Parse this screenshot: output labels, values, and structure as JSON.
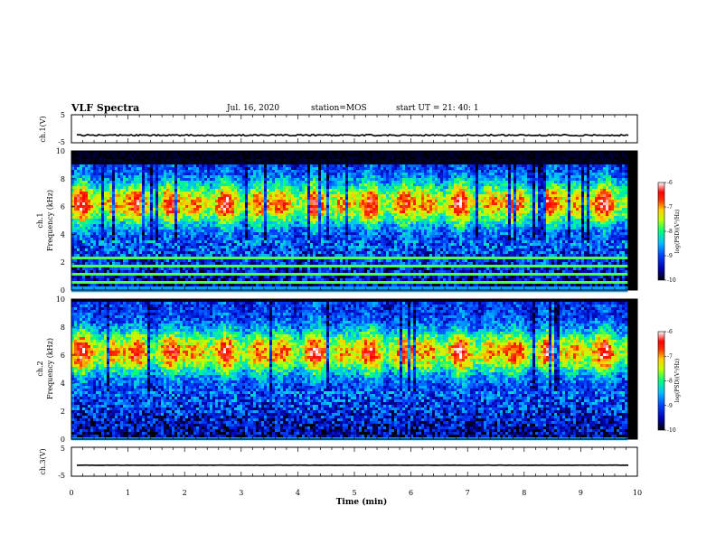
{
  "header": {
    "title": "VLF Spectra",
    "date": "Jul. 16, 2020",
    "station": "station=MOS",
    "start": "start UT =  21: 40: 1"
  },
  "chart_data": [
    {
      "type": "line",
      "name": "ch1-waveform",
      "ylabel": "ch.1(V)",
      "ylim": [
        -5,
        5
      ],
      "yticks": [
        "5",
        "-5"
      ],
      "xlim": [
        0,
        10
      ],
      "level": -2.3
    },
    {
      "type": "heatmap",
      "name": "ch1-spectrogram",
      "ylabel": "ch.1\nFrequency (kHz)",
      "ylim": [
        0,
        10
      ],
      "yticks": [
        "0",
        "2",
        "4",
        "6",
        "8",
        "10"
      ],
      "xlim": [
        0,
        10
      ],
      "data_end_min": 9.8,
      "colorbar": {
        "label": "log(PSD)(V²/Hz)",
        "ticks": [
          "-6",
          "-7",
          "-8",
          "-9",
          "-10"
        ],
        "range": [
          -10,
          -6
        ]
      }
    },
    {
      "type": "heatmap",
      "name": "ch2-spectrogram",
      "ylabel": "ch.2\nFrequency (kHz)",
      "ylim": [
        0,
        10
      ],
      "yticks": [
        "0",
        "2",
        "4",
        "6",
        "8",
        "10"
      ],
      "xlim": [
        0,
        10
      ],
      "data_end_min": 9.8,
      "colorbar": {
        "label": "log(PSD)(V²/Hz)",
        "ticks": [
          "-6",
          "-7",
          "-8",
          "-9",
          "-10"
        ],
        "range": [
          -10,
          -6
        ]
      }
    },
    {
      "type": "line",
      "name": "ch3-waveform",
      "ylabel": "ch.3(V)",
      "ylim": [
        -5,
        5
      ],
      "yticks": [
        "5",
        "-5"
      ],
      "xlim": [
        0,
        10
      ],
      "level": -1.2
    }
  ],
  "xaxis": {
    "label": "Time (min)",
    "ticks": [
      "0",
      "1",
      "2",
      "3",
      "4",
      "5",
      "6",
      "7",
      "8",
      "9",
      "10"
    ]
  }
}
